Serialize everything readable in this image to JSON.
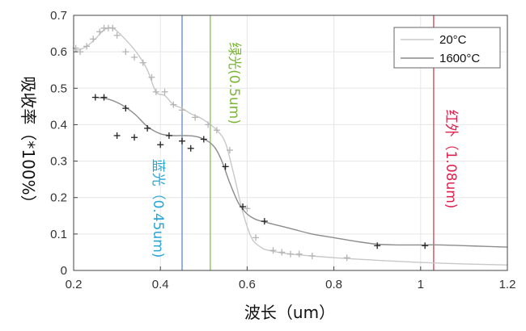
{
  "chart_data": {
    "type": "line",
    "title": "",
    "xlabel": "波长（um）",
    "ylabel": "吸收率（*100%）",
    "xlim": [
      0.2,
      1.2
    ],
    "ylim": [
      0,
      0.7
    ],
    "x_ticks": [
      "0.2",
      "0.4",
      "0.6",
      "0.8",
      "1",
      "1.2"
    ],
    "y_ticks": [
      "0",
      "0.1",
      "0.2",
      "0.3",
      "0.4",
      "0.5",
      "0.6",
      "0.7"
    ],
    "x_tick_values": [
      0.2,
      0.4,
      0.6,
      0.8,
      1.0,
      1.2
    ],
    "y_tick_values": [
      0,
      0.1,
      0.2,
      0.3,
      0.4,
      0.5,
      0.6,
      0.7
    ],
    "grid": true,
    "legend_position": "top-right",
    "series": [
      {
        "name": "20°C",
        "color": "#c8c8c8",
        "line": {
          "x": [
            0.2,
            0.21,
            0.23,
            0.25,
            0.27,
            0.29,
            0.31,
            0.33,
            0.35,
            0.37,
            0.39,
            0.41,
            0.43,
            0.45,
            0.47,
            0.49,
            0.51,
            0.53,
            0.55,
            0.57,
            0.59,
            0.61,
            0.63,
            0.65,
            0.7,
            0.8,
            0.9,
            1.0,
            1.1,
            1.2
          ],
          "y": [
            0.61,
            0.605,
            0.615,
            0.635,
            0.66,
            0.665,
            0.645,
            0.62,
            0.59,
            0.55,
            0.49,
            0.48,
            0.455,
            0.445,
            0.43,
            0.42,
            0.405,
            0.385,
            0.35,
            0.26,
            0.16,
            0.09,
            0.065,
            0.055,
            0.045,
            0.035,
            0.028,
            0.022,
            0.018,
            0.015
          ]
        },
        "markers": {
          "x": [
            0.205,
            0.215,
            0.23,
            0.245,
            0.26,
            0.27,
            0.28,
            0.29,
            0.3,
            0.32,
            0.34,
            0.36,
            0.38,
            0.39,
            0.41,
            0.43,
            0.45,
            0.48,
            0.51,
            0.53,
            0.56,
            0.6,
            0.62,
            0.66,
            0.68,
            0.7,
            0.72,
            0.75,
            0.83
          ],
          "y": [
            0.61,
            0.6,
            0.615,
            0.635,
            0.655,
            0.665,
            0.665,
            0.665,
            0.645,
            0.6,
            0.585,
            0.57,
            0.53,
            0.49,
            0.49,
            0.455,
            0.44,
            0.42,
            0.4,
            0.385,
            0.33,
            0.17,
            0.09,
            0.055,
            0.05,
            0.045,
            0.045,
            0.04,
            0.035
          ]
        }
      },
      {
        "name": "1600°C",
        "color": "#8c8c8c",
        "line": {
          "x": [
            0.25,
            0.28,
            0.31,
            0.34,
            0.37,
            0.4,
            0.43,
            0.46,
            0.49,
            0.52,
            0.54,
            0.56,
            0.58,
            0.6,
            0.62,
            0.65,
            0.7,
            0.75,
            0.8,
            0.85,
            0.9,
            0.95,
            1.0,
            1.05,
            1.1,
            1.15,
            1.2
          ],
          "y": [
            0.475,
            0.47,
            0.455,
            0.43,
            0.395,
            0.375,
            0.37,
            0.37,
            0.365,
            0.345,
            0.305,
            0.24,
            0.185,
            0.155,
            0.14,
            0.13,
            0.115,
            0.1,
            0.09,
            0.08,
            0.072,
            0.07,
            0.07,
            0.07,
            0.068,
            0.066,
            0.064
          ]
        },
        "markers": {
          "x": [
            0.25,
            0.27,
            0.3,
            0.32,
            0.34,
            0.37,
            0.4,
            0.42,
            0.45,
            0.47,
            0.5,
            0.55,
            0.59,
            0.64,
            0.9,
            1.01
          ],
          "y": [
            0.475,
            0.475,
            0.37,
            0.445,
            0.365,
            0.39,
            0.345,
            0.37,
            0.355,
            0.335,
            0.36,
            0.285,
            0.175,
            0.135,
            0.068,
            0.068
          ]
        }
      }
    ],
    "annotations": [
      {
        "label": "蓝光（0.45um)",
        "x": 0.45,
        "color": "#25a7d6",
        "line_color": "#7d9fcf"
      },
      {
        "label": "绿光(0.5um)",
        "x": 0.515,
        "color": "#7ab536",
        "line_color": "#9acd6b"
      },
      {
        "label": "红外（1.08um)",
        "x": 1.03,
        "color": "#e01f4d",
        "line_color": "#e06070"
      }
    ]
  }
}
